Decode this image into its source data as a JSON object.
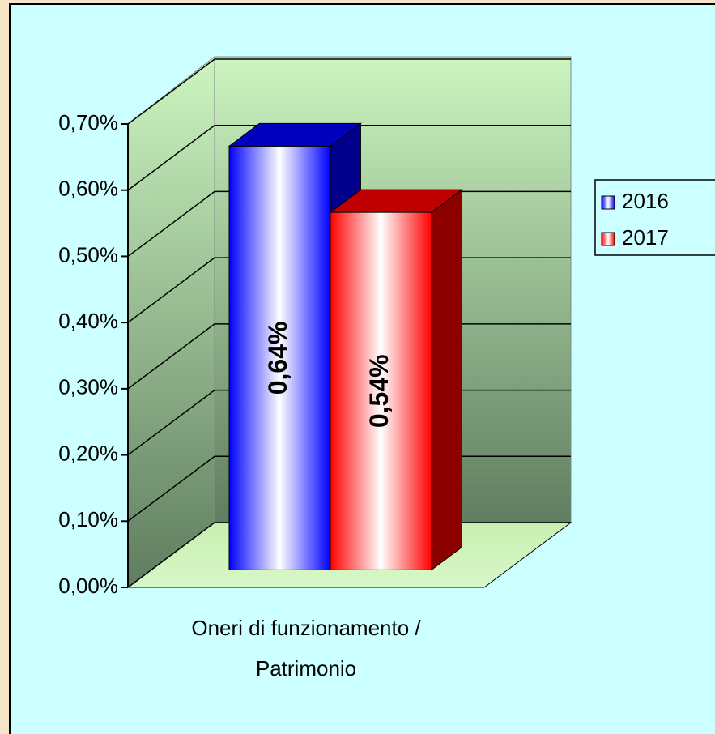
{
  "chart_data": {
    "type": "bar3d",
    "categories": [
      "Oneri di funzionamento / Patrimonio"
    ],
    "series": [
      {
        "name": "2016",
        "color": "#0000ff",
        "values": [
          0.64
        ],
        "value_labels": [
          "0,64%"
        ]
      },
      {
        "name": "2017",
        "color": "#ff0000",
        "values": [
          0.54
        ],
        "value_labels": [
          "0,54%"
        ]
      }
    ],
    "ylim": [
      0,
      0.7
    ],
    "yticks": [
      {
        "value": 0,
        "label": "0,00%"
      },
      {
        "value": 0.1,
        "label": "0,10%"
      },
      {
        "value": 0.2,
        "label": "0,20%"
      },
      {
        "value": 0.3,
        "label": "0,30%"
      },
      {
        "value": 0.4,
        "label": "0,40%"
      },
      {
        "value": 0.5,
        "label": "0,50%"
      },
      {
        "value": 0.6,
        "label": "0,60%"
      },
      {
        "value": 0.7,
        "label": "0,70%"
      }
    ],
    "grid": true,
    "legend": "right"
  }
}
